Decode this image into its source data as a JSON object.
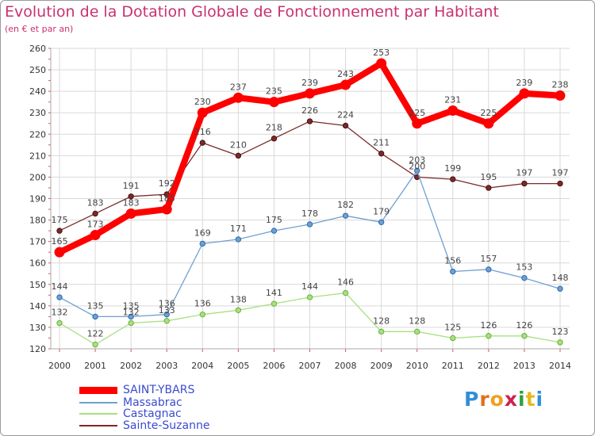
{
  "header": {
    "title": "Evolution de la Dotation Globale de Fonctionnement par Habitant",
    "subtitle": "(en € et par an)"
  },
  "logo": {
    "text": "Proxiti"
  },
  "chart_data": {
    "type": "line",
    "x": [
      "2000",
      "2001",
      "2002",
      "2003",
      "2004",
      "2005",
      "2006",
      "2007",
      "2008",
      "2009",
      "2010",
      "2011",
      "2012",
      "2013",
      "2014"
    ],
    "ylim": [
      120,
      260
    ],
    "yticks": [
      120,
      130,
      140,
      150,
      160,
      170,
      180,
      190,
      200,
      210,
      220,
      230,
      240,
      250,
      260
    ],
    "grid": true,
    "legend_position": "bottom-left",
    "series": [
      {
        "name": "SAINT-YBARS",
        "color": "#ff0000",
        "values": [
          165,
          173,
          183,
          185,
          230,
          237,
          235,
          239,
          243,
          253,
          225,
          231,
          225,
          239,
          238
        ]
      },
      {
        "name": "Massabrac",
        "color": "#6fa0d0",
        "values": [
          144,
          135,
          135,
          136,
          169,
          171,
          175,
          178,
          182,
          179,
          203,
          156,
          157,
          153,
          148
        ]
      },
      {
        "name": "Castagnac",
        "color": "#a8e080",
        "values": [
          132,
          122,
          132,
          133,
          136,
          138,
          141,
          144,
          146,
          128,
          128,
          125,
          126,
          126,
          123
        ]
      },
      {
        "name": "Sainte-Suzanne",
        "color": "#7a2a2a",
        "values": [
          175,
          183,
          191,
          192,
          216,
          210,
          218,
          226,
          224,
          211,
          200,
          199,
          195,
          197,
          197
        ]
      }
    ]
  }
}
